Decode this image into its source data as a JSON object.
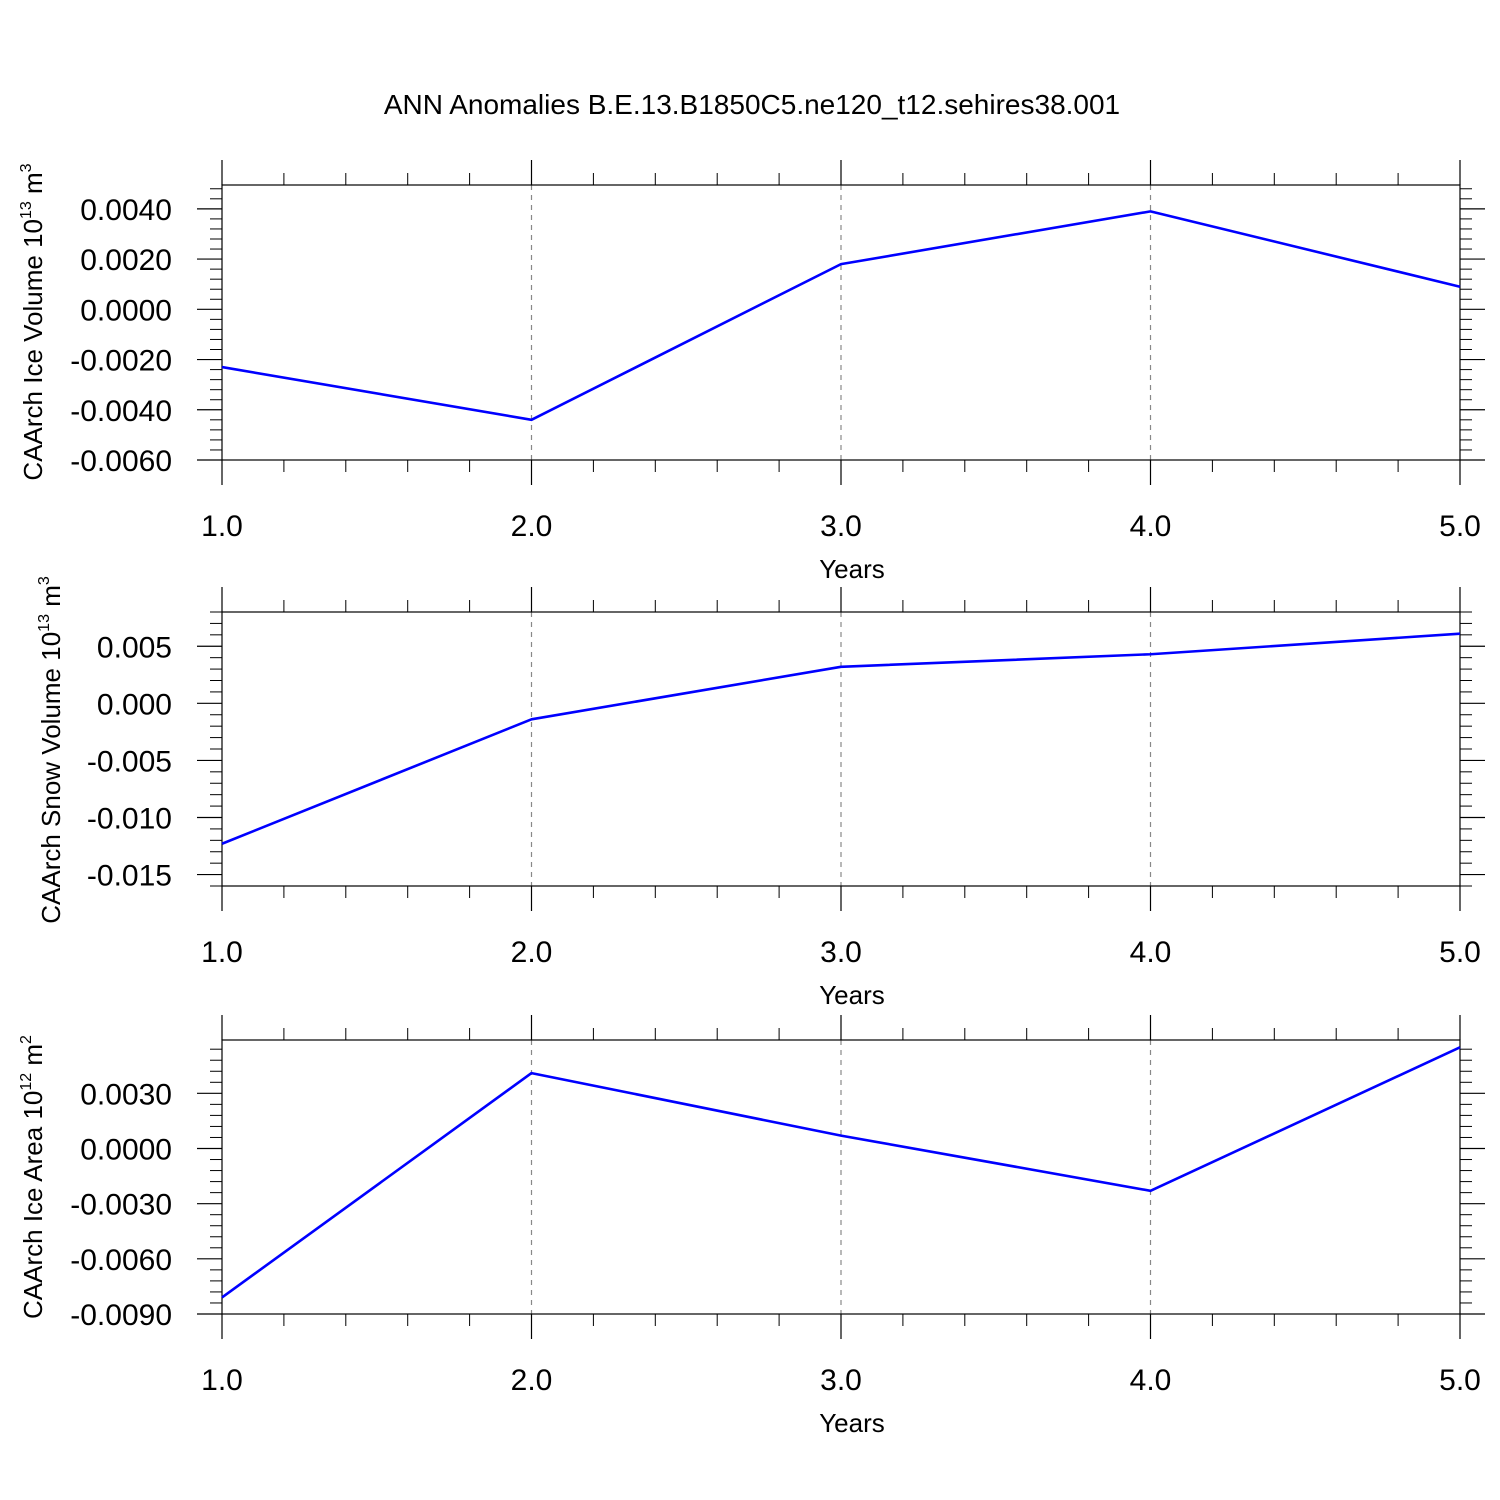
{
  "title": "ANN Anomalies B.E.13.B1850C5.ne120_t12.sehires38.001",
  "chart_data": [
    {
      "type": "line",
      "xlabel": "Years",
      "ylabel": {
        "base": "CAArch Ice Volume 10",
        "exp": "13",
        "unit": " m",
        "unit_exp": "3"
      },
      "x": [
        1,
        2,
        3,
        4,
        5
      ],
      "xlim": [
        1,
        5
      ],
      "xticks": [
        1,
        2,
        3,
        4,
        5
      ],
      "xtick_labels": [
        "1.0",
        "2.0",
        "3.0",
        "4.0",
        "5.0"
      ],
      "ylim": [
        -0.006,
        0.00495
      ],
      "yticks": [
        0.004,
        0.002,
        0.0,
        -0.002,
        -0.004,
        -0.006
      ],
      "ytick_labels": [
        "0.0040",
        "0.0020",
        "0.0000",
        "-0.0020",
        "-0.0040",
        "-0.0060"
      ],
      "series": [
        {
          "values": [
            -0.0023,
            -0.0044,
            0.0018,
            0.0039,
            0.0009
          ],
          "color": "#0000ff"
        }
      ],
      "grid": "x-dashed"
    },
    {
      "type": "line",
      "xlabel": "Years",
      "ylabel": {
        "base": "CAArch Snow Volume 10",
        "exp": "13",
        "unit": " m",
        "unit_exp": "3"
      },
      "x": [
        1,
        2,
        3,
        4,
        5
      ],
      "xlim": [
        1,
        5
      ],
      "xticks": [
        1,
        2,
        3,
        4,
        5
      ],
      "xtick_labels": [
        "1.0",
        "2.0",
        "3.0",
        "4.0",
        "5.0"
      ],
      "ylim": [
        -0.016,
        0.008
      ],
      "yticks": [
        0.005,
        0.0,
        -0.005,
        -0.01,
        -0.015
      ],
      "ytick_labels": [
        "0.005",
        "0.000",
        "-0.005",
        "-0.010",
        "-0.015"
      ],
      "series": [
        {
          "values": [
            -0.0123,
            -0.0014,
            0.0032,
            0.0043,
            0.0061
          ],
          "color": "#0000ff"
        }
      ],
      "grid": "x-dashed"
    },
    {
      "type": "line",
      "xlabel": "Years",
      "ylabel": {
        "base": "CAArch Ice Area 10",
        "exp": "12",
        "unit": " m",
        "unit_exp": "2"
      },
      "x": [
        1,
        2,
        3,
        4,
        5
      ],
      "xlim": [
        1,
        5
      ],
      "xticks": [
        1,
        2,
        3,
        4,
        5
      ],
      "xtick_labels": [
        "1.0",
        "2.0",
        "3.0",
        "4.0",
        "5.0"
      ],
      "ylim": [
        -0.009,
        0.0059
      ],
      "yticks": [
        0.003,
        0.0,
        -0.003,
        -0.006,
        -0.009
      ],
      "ytick_labels": [
        "0.0030",
        "0.0000",
        "-0.0030",
        "-0.0060",
        "-0.0090"
      ],
      "series": [
        {
          "values": [
            -0.0081,
            0.0041,
            0.0007,
            -0.0023,
            0.0055
          ],
          "color": "#0000ff"
        }
      ],
      "grid": "x-dashed"
    }
  ]
}
